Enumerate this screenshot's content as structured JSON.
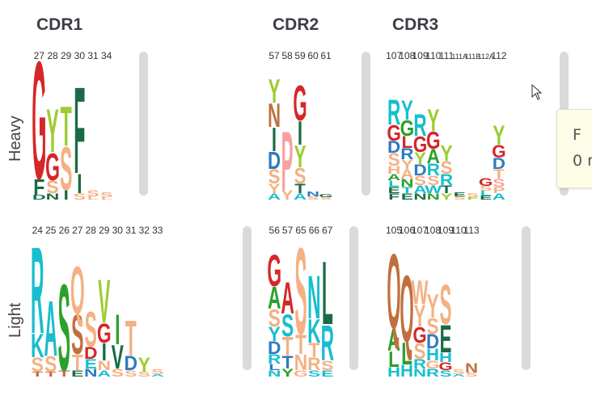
{
  "headers": {
    "cdr1": "CDR1",
    "cdr2": "CDR2",
    "cdr3": "CDR3"
  },
  "rows": {
    "heavy": "Heavy",
    "light": "Light"
  },
  "tooltip": {
    "line1": "F",
    "line2": "0 r"
  },
  "colors": {
    "red": "#d62728",
    "green": "#2ca02c",
    "darkgreen": "#1a6b45",
    "teal": "#17becf",
    "blue": "#2e7bbf",
    "orange": "#f4b183",
    "brown": "#c0703f",
    "pink": "#f7a1a1",
    "olive": "#9acd32"
  },
  "logos": [
    {
      "id": "heavy-cdr1",
      "positions": [
        "27",
        "28",
        "29",
        "30",
        "31",
        "34"
      ],
      "columns": [
        [
          [
            "G",
            "red",
            150
          ],
          [
            "F",
            "darkgreen",
            20
          ],
          [
            "D",
            "darkgreen",
            6
          ]
        ],
        [
          [
            "Y",
            "olive",
            55
          ],
          [
            "G",
            "red",
            35
          ],
          [
            "S",
            "orange",
            16
          ],
          [
            "N",
            "darkgreen",
            8
          ]
        ],
        [
          [
            "T",
            "olive",
            50
          ],
          [
            "S",
            "orange",
            55
          ],
          [
            "I",
            "darkgreen",
            12
          ]
        ],
        [
          [
            "F",
            "darkgreen",
            110
          ],
          [
            "I",
            "darkgreen",
            25
          ],
          [
            "S",
            "orange",
            8
          ]
        ],
        [
          [
            "S",
            "orange",
            8
          ],
          [
            "L",
            "orange",
            4
          ]
        ],
        [
          [
            "S",
            "orange",
            6
          ],
          [
            "L",
            "orange",
            3
          ]
        ]
      ]
    },
    {
      "id": "heavy-cdr2",
      "positions": [
        "57",
        "58",
        "59",
        "60",
        "61"
      ],
      "columns": [
        [
          [
            "Y",
            "olive",
            30
          ],
          [
            "N",
            "brown",
            30
          ],
          [
            "I",
            "darkgreen",
            30
          ],
          [
            "D",
            "blue",
            22
          ],
          [
            "S",
            "orange",
            18
          ],
          [
            "Y",
            "orange",
            12
          ],
          [
            "A",
            "teal",
            8
          ]
        ],
        [
          [
            "P",
            "pink",
            75
          ],
          [
            "Y",
            "orange",
            12
          ]
        ],
        [
          [
            "G",
            "red",
            45
          ],
          [
            "I",
            "darkgreen",
            30
          ],
          [
            "Y",
            "olive",
            28
          ],
          [
            "S",
            "orange",
            20
          ],
          [
            "T",
            "darkgreen",
            12
          ],
          [
            "A",
            "teal",
            8
          ]
        ],
        [
          [
            "N",
            "blue",
            6
          ],
          [
            "S",
            "orange",
            4
          ]
        ],
        [
          [
            "G",
            "darkgreen",
            4
          ],
          [
            "S",
            "orange",
            3
          ]
        ]
      ]
    },
    {
      "id": "heavy-cdr3",
      "positions": [
        "107",
        "108",
        "109",
        "110",
        "111",
        "111A",
        "111B",
        "112A",
        "112"
      ],
      "columns": [
        [
          [
            "R",
            "teal",
            32
          ],
          [
            "G",
            "red",
            20
          ],
          [
            "D",
            "blue",
            15
          ],
          [
            "S",
            "orange",
            16
          ],
          [
            "H",
            "orange",
            10
          ],
          [
            "A",
            "green",
            8
          ],
          [
            "L",
            "teal",
            8
          ],
          [
            "E",
            "darkgreen",
            8
          ],
          [
            "F",
            "darkgreen",
            8
          ]
        ],
        [
          [
            "Y",
            "teal",
            25
          ],
          [
            "G",
            "green",
            20
          ],
          [
            "L",
            "red",
            15
          ],
          [
            "R",
            "blue",
            14
          ],
          [
            "Y",
            "orange",
            12
          ],
          [
            "A",
            "orange",
            12
          ],
          [
            "N",
            "green",
            10
          ],
          [
            "T",
            "teal",
            8
          ],
          [
            "E",
            "darkgreen",
            8
          ]
        ],
        [
          [
            "R",
            "teal",
            28
          ],
          [
            "G",
            "red",
            20
          ],
          [
            "Y",
            "olive",
            15
          ],
          [
            "D",
            "blue",
            14
          ],
          [
            "S",
            "orange",
            12
          ],
          [
            "A",
            "teal",
            10
          ],
          [
            "N",
            "darkgreen",
            8
          ]
        ],
        [
          [
            "Y",
            "olive",
            28
          ],
          [
            "G",
            "red",
            22
          ],
          [
            "A",
            "green",
            18
          ],
          [
            "R",
            "teal",
            15
          ],
          [
            "S",
            "orange",
            12
          ],
          [
            "W",
            "teal",
            10
          ],
          [
            "N",
            "green",
            8
          ]
        ],
        [
          [
            "Y",
            "olive",
            20
          ],
          [
            "S",
            "orange",
            16
          ],
          [
            "R",
            "teal",
            14
          ],
          [
            "T",
            "darkgreen",
            10
          ],
          [
            "Y",
            "olive",
            8
          ]
        ],
        [
          [
            "E",
            "darkgreen",
            5
          ],
          [
            "S",
            "orange",
            4
          ]
        ],
        [
          [
            "S",
            "orange",
            5
          ],
          [
            "F",
            "olive",
            3
          ]
        ],
        [
          [
            "G",
            "red",
            10
          ],
          [
            "S",
            "orange",
            6
          ],
          [
            "L",
            "teal",
            6
          ],
          [
            "E",
            "darkgreen",
            5
          ]
        ],
        [
          [
            "Y",
            "olive",
            25
          ],
          [
            "G",
            "red",
            16
          ],
          [
            "D",
            "blue",
            14
          ],
          [
            "T",
            "orange",
            12
          ],
          [
            "S",
            "pink",
            10
          ],
          [
            "P",
            "orange",
            8
          ],
          [
            "A",
            "teal",
            8
          ]
        ]
      ]
    },
    {
      "id": "light-cdr1",
      "positions": [
        "24",
        "25",
        "26",
        "27",
        "28",
        "29",
        "30",
        "31",
        "32",
        "33"
      ],
      "columns": [
        [
          [
            "R",
            "teal",
            110
          ],
          [
            "K",
            "teal",
            30
          ],
          [
            "S",
            "orange",
            18
          ],
          [
            "T",
            "brown",
            6
          ]
        ],
        [
          [
            "A",
            "teal",
            70
          ],
          [
            "S",
            "orange",
            20
          ],
          [
            "T",
            "brown",
            6
          ]
        ],
        [
          [
            "S",
            "green",
            110
          ],
          [
            "T",
            "brown",
            8
          ]
        ],
        [
          [
            "Q",
            "orange",
            60
          ],
          [
            "S",
            "brown",
            50
          ],
          [
            "T",
            "orange",
            20
          ],
          [
            "E",
            "darkgreen",
            8
          ]
        ],
        [
          [
            "S",
            "orange",
            45
          ],
          [
            "D",
            "red",
            15
          ],
          [
            "E",
            "teal",
            12
          ],
          [
            "N",
            "blue",
            10
          ]
        ],
        [
          [
            "V",
            "olive",
            55
          ],
          [
            "G",
            "red",
            25
          ],
          [
            "I",
            "darkgreen",
            22
          ],
          [
            "N",
            "orange",
            12
          ],
          [
            "A",
            "teal",
            8
          ]
        ],
        [
          [
            "I",
            "green",
            38
          ],
          [
            "V",
            "darkgreen",
            30
          ],
          [
            "S",
            "orange",
            10
          ]
        ],
        [
          [
            "T",
            "orange",
            45
          ],
          [
            "D",
            "blue",
            18
          ],
          [
            "S",
            "orange",
            8
          ]
        ],
        [
          [
            "Y",
            "olive",
            18
          ],
          [
            "S",
            "orange",
            6
          ]
        ],
        [
          [
            "S",
            "orange",
            6
          ],
          [
            "A",
            "teal",
            3
          ]
        ]
      ]
    },
    {
      "id": "light-cdr2",
      "positions": [
        "56",
        "57",
        "65",
        "66",
        "67"
      ],
      "columns": [
        [
          [
            "G",
            "red",
            40
          ],
          [
            "A",
            "green",
            28
          ],
          [
            "S",
            "orange",
            22
          ],
          [
            "Y",
            "teal",
            18
          ],
          [
            "D",
            "blue",
            16
          ],
          [
            "R",
            "teal",
            12
          ],
          [
            "L",
            "blue",
            8
          ],
          [
            "N",
            "teal",
            8
          ]
        ],
        [
          [
            "A",
            "red",
            40
          ],
          [
            "S",
            "teal",
            28
          ],
          [
            "T",
            "orange",
            24
          ],
          [
            "T",
            "blue",
            16
          ],
          [
            "Y",
            "green",
            10
          ]
        ],
        [
          [
            "S",
            "orange",
            110
          ],
          [
            "T",
            "orange",
            25
          ],
          [
            "N",
            "orange",
            20
          ],
          [
            "G",
            "orange",
            8
          ]
        ],
        [
          [
            "N",
            "teal",
            55
          ],
          [
            "K",
            "teal",
            30
          ],
          [
            "T",
            "orange",
            18
          ],
          [
            "R",
            "orange",
            16
          ],
          [
            "S",
            "teal",
            8
          ]
        ],
        [
          [
            "L",
            "darkgreen",
            80
          ],
          [
            "R",
            "teal",
            45
          ],
          [
            "S",
            "orange",
            12
          ],
          [
            "E",
            "teal",
            8
          ]
        ]
      ]
    },
    {
      "id": "light-cdr3",
      "positions": [
        "105",
        "106",
        "107",
        "108",
        "109",
        "110",
        "113"
      ],
      "columns": [
        [
          [
            "Q",
            "brown",
            95
          ],
          [
            "A",
            "green",
            28
          ],
          [
            "L",
            "green",
            20
          ],
          [
            "H",
            "teal",
            12
          ]
        ],
        [
          [
            "Q",
            "brown",
            85
          ],
          [
            "L",
            "green",
            28
          ],
          [
            "H",
            "teal",
            15
          ]
        ],
        [
          [
            "W",
            "orange",
            30
          ],
          [
            "Y",
            "orange",
            28
          ],
          [
            "G",
            "red",
            20
          ],
          [
            "S",
            "orange",
            20
          ],
          [
            "R",
            "teal",
            12
          ],
          [
            "N",
            "teal",
            10
          ]
        ],
        [
          [
            "Y",
            "orange",
            30
          ],
          [
            "S",
            "orange",
            20
          ],
          [
            "D",
            "blue",
            18
          ],
          [
            "H",
            "teal",
            15
          ],
          [
            "G",
            "orange",
            10
          ],
          [
            "R",
            "teal",
            10
          ]
        ],
        [
          [
            "S",
            "orange",
            50
          ],
          [
            "E",
            "darkgreen",
            35
          ],
          [
            "H",
            "teal",
            12
          ],
          [
            "G",
            "red",
            10
          ],
          [
            "S",
            "teal",
            8
          ]
        ],
        [
          [
            "S",
            "orange",
            6
          ],
          [
            "A",
            "teal",
            3
          ]
        ],
        [
          [
            "N",
            "brown",
            12
          ],
          [
            "S",
            "orange",
            5
          ]
        ]
      ]
    }
  ]
}
